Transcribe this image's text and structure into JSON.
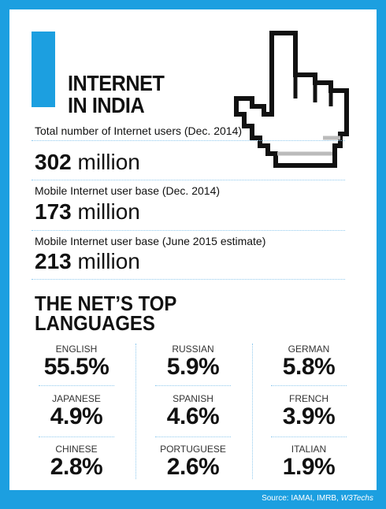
{
  "header": {
    "title_lines": [
      "INTERNET",
      "IN INDIA"
    ]
  },
  "stats": [
    {
      "label": "Total number of Internet users (Dec. 2014)",
      "number": "302",
      "unit": "million"
    },
    {
      "label": "Mobile Internet user base (Dec. 2014)",
      "number": "173",
      "unit": "million"
    },
    {
      "label": "Mobile Internet user base (June 2015 estimate)",
      "number": "213",
      "unit": "million"
    }
  ],
  "languages": {
    "heading_lines": [
      "THE NET’S TOP",
      "LANGUAGES"
    ],
    "items": [
      {
        "name": "ENGLISH",
        "share": "55.5%"
      },
      {
        "name": "RUSSIAN",
        "share": "5.9%"
      },
      {
        "name": "GERMAN",
        "share": "5.8%"
      },
      {
        "name": "JAPANESE",
        "share": "4.9%"
      },
      {
        "name": "SPANISH",
        "share": "4.6%"
      },
      {
        "name": "FRENCH",
        "share": "3.9%"
      },
      {
        "name": "CHINESE",
        "share": "2.8%"
      },
      {
        "name": "PORTUGUESE",
        "share": "2.6%"
      },
      {
        "name": "ITALIAN",
        "share": "1.9%"
      }
    ]
  },
  "source": {
    "text": "Source: IAMAI, IMRB,",
    "italic": "W3Techs"
  }
}
